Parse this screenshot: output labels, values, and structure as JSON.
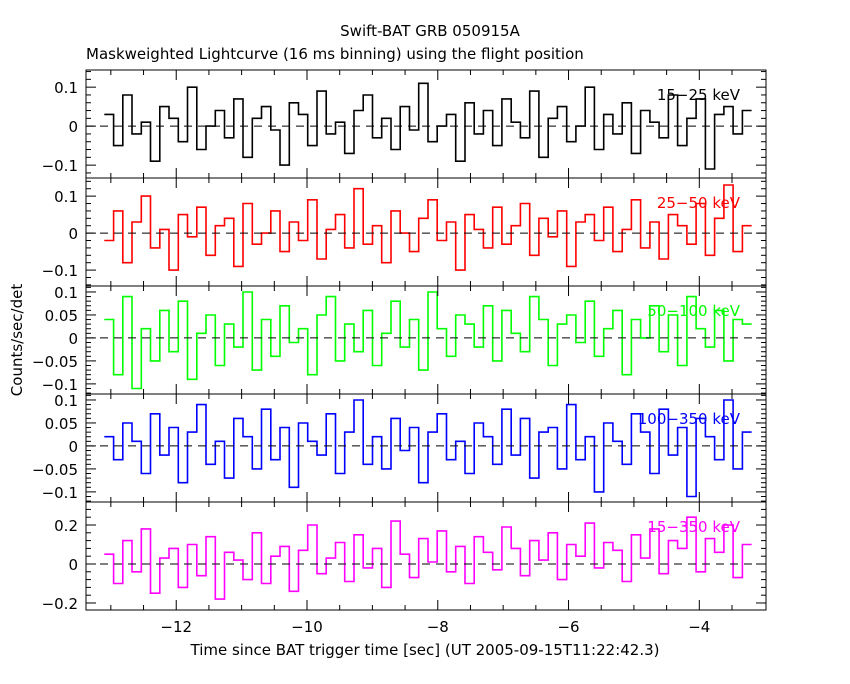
{
  "chart_data": {
    "type": "line",
    "title": "Swift-BAT GRB 050915A",
    "subtitle": "Maskweighted Lightcurve (16 ms binning) using the flight position",
    "xlabel": "Time since BAT trigger time [sec] (UT 2005-09-15T11:22:42.3)",
    "ylabel": "Counts/sec/det",
    "xlim": [
      -13.38,
      -2.98
    ],
    "x_start": -13.1,
    "x_end": -3.2,
    "xticks": [
      -12,
      -10,
      -8,
      -6,
      -4
    ],
    "xtick_labels": [
      "−12",
      "−10",
      "−8",
      "−6",
      "−4"
    ],
    "panels": [
      {
        "name": "15−25 keV",
        "color": "#000000",
        "ylim": [
          -0.133,
          0.144
        ],
        "yticks": [
          -0.1,
          0,
          0.1
        ],
        "ytick_labels": [
          "−0.1",
          "0",
          "0.1"
        ],
        "values": [
          0.03,
          -0.05,
          0.08,
          -0.02,
          0.01,
          -0.09,
          0.05,
          0.02,
          -0.04,
          0.1,
          -0.06,
          0.0,
          0.04,
          -0.03,
          0.07,
          -0.08,
          0.02,
          0.05,
          -0.01,
          -0.1,
          0.06,
          0.03,
          -0.05,
          0.09,
          -0.02,
          0.01,
          -0.07,
          0.04,
          0.08,
          -0.03,
          0.02,
          -0.06,
          0.05,
          -0.01,
          0.11,
          -0.04,
          0.0,
          0.03,
          -0.09,
          0.06,
          -0.02,
          0.04,
          -0.05,
          0.07,
          0.01,
          -0.03,
          0.09,
          -0.08,
          0.02,
          0.05,
          -0.04,
          0.0,
          0.1,
          -0.06,
          0.03,
          -0.02,
          0.06,
          -0.07,
          0.04,
          0.01,
          -0.03,
          0.08,
          -0.05,
          0.02,
          0.07,
          -0.11,
          0.03,
          0.05,
          -0.02,
          0.04
        ]
      },
      {
        "name": "25−50 keV",
        "color": "#ff0000",
        "ylim": [
          -0.143,
          0.149
        ],
        "yticks": [
          -0.1,
          0,
          0.1
        ],
        "ytick_labels": [
          "−0.1",
          "0",
          "0.1"
        ],
        "values": [
          -0.02,
          0.06,
          -0.08,
          0.03,
          0.1,
          -0.04,
          0.01,
          -0.1,
          0.05,
          -0.01,
          0.07,
          -0.06,
          0.02,
          0.04,
          -0.09,
          0.08,
          -0.03,
          0.0,
          0.06,
          -0.05,
          0.03,
          -0.02,
          0.09,
          -0.07,
          0.01,
          0.05,
          -0.04,
          0.12,
          -0.03,
          0.02,
          -0.08,
          0.06,
          0.0,
          -0.05,
          0.04,
          0.09,
          -0.02,
          0.03,
          -0.1,
          0.05,
          0.01,
          -0.04,
          0.07,
          -0.03,
          0.02,
          0.08,
          -0.06,
          0.04,
          -0.01,
          0.06,
          -0.09,
          0.03,
          0.05,
          -0.02,
          0.07,
          -0.05,
          0.01,
          0.09,
          -0.04,
          0.03,
          -0.07,
          0.05,
          0.02,
          -0.03,
          0.08,
          -0.06,
          0.04,
          0.13,
          -0.05,
          0.02
        ]
      },
      {
        "name": "50−100 keV",
        "color": "#00ff00",
        "ylim": [
          -0.122,
          0.113
        ],
        "yticks": [
          -0.1,
          -0.05,
          0,
          0.05,
          0.1
        ],
        "ytick_labels": [
          "−0.1",
          "−0.05",
          "0",
          "0.05",
          "0.1"
        ],
        "values": [
          0.04,
          -0.08,
          0.09,
          -0.11,
          0.02,
          -0.05,
          0.06,
          -0.03,
          0.08,
          -0.09,
          0.01,
          0.05,
          -0.06,
          0.03,
          -0.02,
          0.1,
          -0.07,
          0.04,
          -0.04,
          0.07,
          -0.01,
          0.02,
          -0.08,
          0.05,
          0.09,
          -0.05,
          0.03,
          -0.03,
          0.06,
          -0.06,
          0.01,
          0.08,
          -0.02,
          0.04,
          -0.07,
          0.1,
          0.02,
          -0.04,
          0.05,
          0.03,
          -0.02,
          0.07,
          -0.05,
          0.06,
          0.01,
          -0.03,
          0.09,
          0.04,
          -0.06,
          0.03,
          0.05,
          -0.01,
          0.08,
          -0.04,
          0.02,
          0.06,
          -0.08,
          0.04,
          0.0,
          0.07,
          -0.03,
          0.05,
          -0.06,
          0.09,
          0.02,
          -0.02,
          0.06,
          -0.05,
          0.04,
          0.03
        ]
      },
      {
        "name": "100−350 keV",
        "color": "#0000ff",
        "ylim": [
          -0.122,
          0.113
        ],
        "yticks": [
          -0.1,
          -0.05,
          0,
          0.05,
          0.1
        ],
        "ytick_labels": [
          "−0.1",
          "−0.05",
          "0",
          "0.05",
          "0.1"
        ],
        "values": [
          0.02,
          -0.03,
          0.05,
          0.01,
          -0.06,
          0.07,
          -0.02,
          0.04,
          -0.08,
          0.03,
          0.09,
          -0.04,
          0.01,
          -0.07,
          0.06,
          0.02,
          -0.05,
          0.08,
          -0.03,
          0.04,
          -0.09,
          0.05,
          0.01,
          -0.02,
          0.07,
          -0.06,
          0.03,
          0.1,
          -0.04,
          0.02,
          -0.05,
          0.06,
          -0.01,
          0.04,
          -0.08,
          0.03,
          0.07,
          -0.03,
          0.01,
          -0.06,
          0.05,
          0.02,
          -0.04,
          0.08,
          -0.02,
          0.06,
          -0.07,
          0.03,
          0.04,
          -0.05,
          0.09,
          -0.03,
          0.02,
          -0.1,
          0.05,
          0.01,
          -0.04,
          0.07,
          0.03,
          -0.06,
          0.08,
          -0.02,
          0.04,
          -0.11,
          0.06,
          0.02,
          -0.03,
          0.1,
          -0.05,
          0.03
        ]
      },
      {
        "name": "15−350 keV",
        "color": "#ff00ff",
        "ylim": [
          -0.236,
          0.318
        ],
        "yticks": [
          -0.2,
          0,
          0.2
        ],
        "ytick_labels": [
          "−0.2",
          "0",
          "0.2"
        ],
        "values": [
          0.05,
          -0.1,
          0.12,
          -0.04,
          0.18,
          -0.15,
          0.03,
          0.08,
          -0.12,
          0.1,
          -0.06,
          0.14,
          -0.18,
          0.06,
          0.02,
          -0.08,
          0.16,
          -0.1,
          0.04,
          0.09,
          -0.14,
          0.07,
          0.2,
          -0.05,
          0.03,
          0.11,
          -0.09,
          0.15,
          -0.02,
          0.08,
          -0.12,
          0.22,
          0.05,
          -0.07,
          0.13,
          0.01,
          0.17,
          -0.04,
          0.09,
          -0.1,
          0.14,
          0.06,
          -0.03,
          0.19,
          0.08,
          -0.06,
          0.12,
          0.02,
          0.16,
          -0.08,
          0.1,
          0.04,
          0.21,
          -0.02,
          0.11,
          0.07,
          -0.09,
          0.15,
          0.03,
          0.18,
          -0.05,
          0.12,
          0.08,
          0.24,
          -0.04,
          0.13,
          0.06,
          0.2,
          -0.07,
          0.1
        ]
      }
    ]
  }
}
